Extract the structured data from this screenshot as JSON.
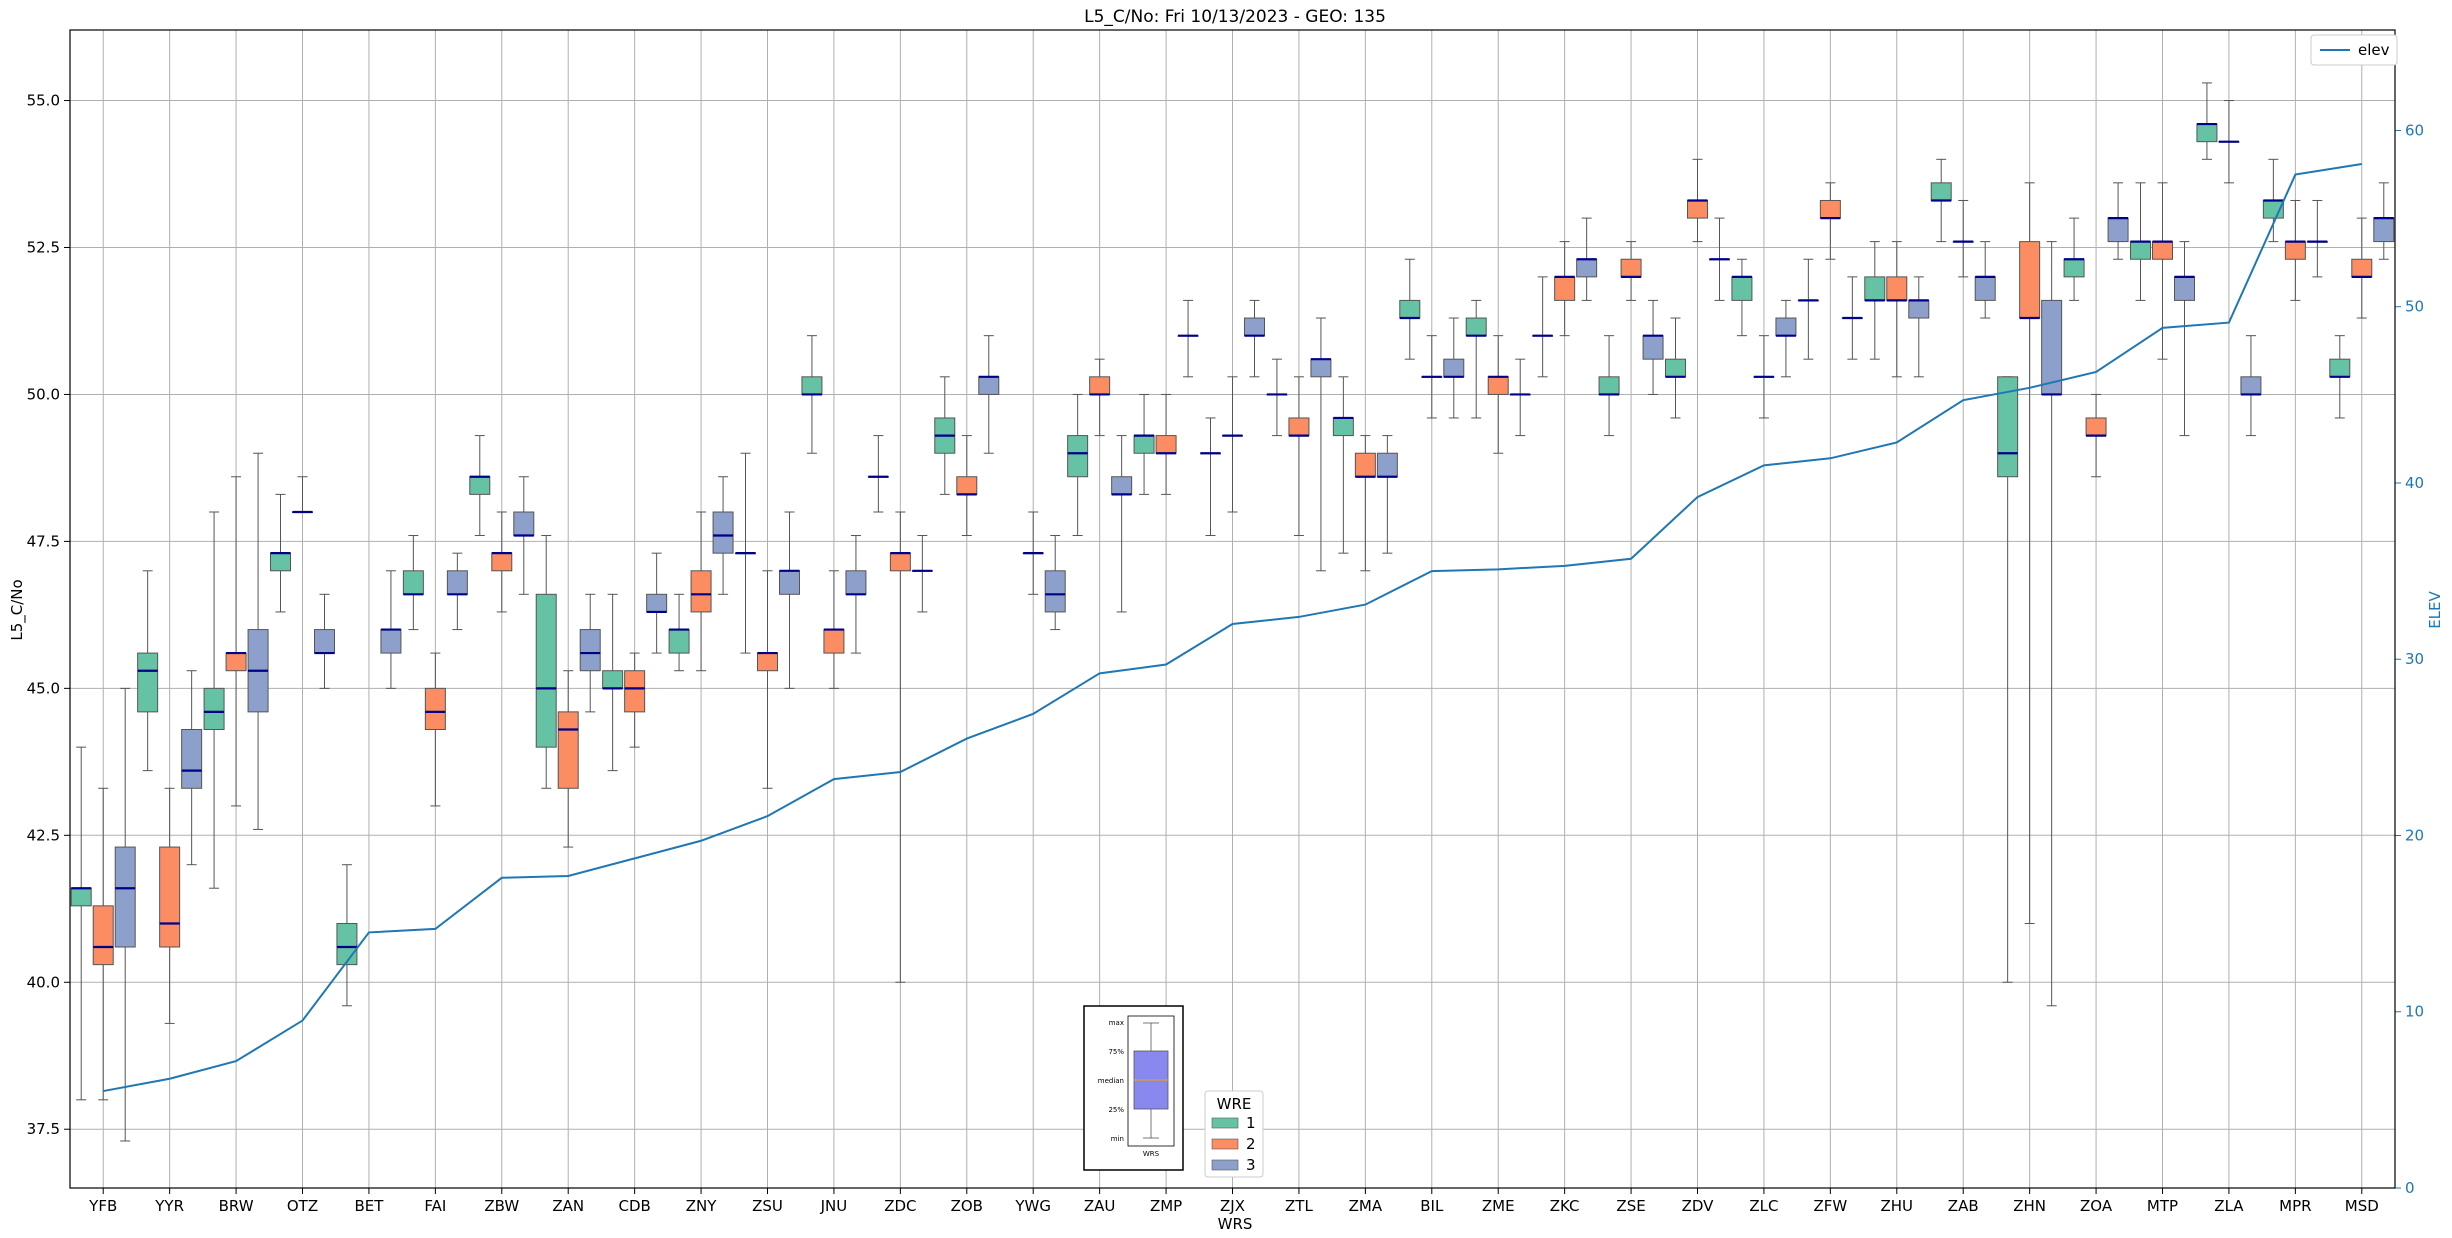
{
  "chart_data": {
    "type": "box",
    "title": "L5_C/No: Fri 10/13/2023 - GEO: 135",
    "xlabel": "WRS",
    "ylabel": "L5_C/No",
    "y2label": "ELEV",
    "ylim": [
      36.5,
      56.2
    ],
    "y2lim": [
      0,
      65.7
    ],
    "yticks": [
      "37.5",
      "40.0",
      "42.5",
      "45.0",
      "47.5",
      "50.0",
      "52.5",
      "55.0"
    ],
    "y2ticks": [
      "0",
      "10",
      "20",
      "30",
      "40",
      "50",
      "60"
    ],
    "grid": true,
    "colors": {
      "1": "#66c2a5",
      "2": "#fc8d62",
      "3": "#8da0cb",
      "median": "#00008b",
      "elev": "#1f77b4"
    },
    "categories": [
      "YFB",
      "YYR",
      "BRW",
      "OTZ",
      "BET",
      "FAI",
      "ZBW",
      "ZAN",
      "CDB",
      "ZNY",
      "ZSU",
      "JNU",
      "ZDC",
      "ZOB",
      "YWG",
      "ZAU",
      "ZMP",
      "ZJX",
      "ZTL",
      "ZMA",
      "BIL",
      "ZME",
      "ZKC",
      "ZSE",
      "ZDV",
      "ZLC",
      "ZFW",
      "ZHU",
      "ZAB",
      "ZHN",
      "ZOA",
      "MTP",
      "ZLA",
      "MPR",
      "MSD"
    ],
    "legend": {
      "title": "WRE",
      "entries": [
        "1",
        "2",
        "3"
      ]
    },
    "elev_legend": "elev",
    "elev": [
      5.5,
      6.2,
      7.2,
      9.5,
      14.5,
      14.7,
      17.6,
      17.7,
      18.7,
      19.7,
      21.1,
      23.2,
      23.6,
      25.5,
      26.9,
      29.2,
      29.7,
      32.0,
      32.4,
      33.1,
      35.0,
      35.1,
      35.3,
      35.7,
      39.2,
      41.0,
      41.4,
      42.3,
      44.7,
      45.4,
      46.3,
      48.8,
      49.1,
      57.5,
      58.1
    ],
    "boxes": [
      {
        "station": "YFB",
        "wre": "1",
        "min": 38.0,
        "q1": 41.3,
        "median": 41.6,
        "q3": 41.6,
        "max": 44.0
      },
      {
        "station": "YFB",
        "wre": "2",
        "min": 38.0,
        "q1": 40.3,
        "median": 40.6,
        "q3": 41.3,
        "max": 43.3
      },
      {
        "station": "YFB",
        "wre": "3",
        "min": 37.3,
        "q1": 40.6,
        "median": 41.6,
        "q3": 42.3,
        "max": 45.0
      },
      {
        "station": "YYR",
        "wre": "1",
        "min": 43.6,
        "q1": 44.6,
        "median": 45.3,
        "q3": 45.6,
        "max": 47.0
      },
      {
        "station": "YYR",
        "wre": "2",
        "min": 39.3,
        "q1": 40.6,
        "median": 41.0,
        "q3": 42.3,
        "max": 43.3
      },
      {
        "station": "YYR",
        "wre": "3",
        "min": 42.0,
        "q1": 43.3,
        "median": 43.6,
        "q3": 44.3,
        "max": 45.3
      },
      {
        "station": "BRW",
        "wre": "1",
        "min": 41.6,
        "q1": 44.3,
        "median": 44.6,
        "q3": 45.0,
        "max": 48.0
      },
      {
        "station": "BRW",
        "wre": "2",
        "min": 43.0,
        "q1": 45.3,
        "median": 45.6,
        "q3": 45.6,
        "max": 48.6
      },
      {
        "station": "BRW",
        "wre": "3",
        "min": 42.6,
        "q1": 44.6,
        "median": 45.3,
        "q3": 46.0,
        "max": 49.0
      },
      {
        "station": "OTZ",
        "wre": "1",
        "min": 46.3,
        "q1": 47.0,
        "median": 47.3,
        "q3": 47.3,
        "max": 48.3
      },
      {
        "station": "OTZ",
        "wre": "2",
        "min": 48.0,
        "q1": 48.0,
        "median": 48.0,
        "q3": 48.0,
        "max": 48.6
      },
      {
        "station": "OTZ",
        "wre": "3",
        "min": 45.0,
        "q1": 45.6,
        "median": 45.6,
        "q3": 46.0,
        "max": 46.6
      },
      {
        "station": "BET",
        "wre": "1",
        "min": 39.6,
        "q1": 40.3,
        "median": 40.6,
        "q3": 41.0,
        "max": 42.0
      },
      {
        "station": "BET",
        "wre": "3",
        "min": 45.0,
        "q1": 45.6,
        "median": 46.0,
        "q3": 46.0,
        "max": 47.0
      },
      {
        "station": "FAI",
        "wre": "1",
        "min": 46.0,
        "q1": 46.6,
        "median": 46.6,
        "q3": 47.0,
        "max": 47.6
      },
      {
        "station": "FAI",
        "wre": "2",
        "min": 43.0,
        "q1": 44.3,
        "median": 44.6,
        "q3": 45.0,
        "max": 45.6
      },
      {
        "station": "FAI",
        "wre": "3",
        "min": 46.0,
        "q1": 46.6,
        "median": 46.6,
        "q3": 47.0,
        "max": 47.3
      },
      {
        "station": "ZBW",
        "wre": "1",
        "min": 47.6,
        "q1": 48.3,
        "median": 48.6,
        "q3": 48.6,
        "max": 49.3
      },
      {
        "station": "ZBW",
        "wre": "2",
        "min": 46.3,
        "q1": 47.0,
        "median": 47.3,
        "q3": 47.3,
        "max": 48.0
      },
      {
        "station": "ZBW",
        "wre": "3",
        "min": 46.6,
        "q1": 47.6,
        "median": 47.6,
        "q3": 48.0,
        "max": 48.6
      },
      {
        "station": "ZAN",
        "wre": "1",
        "min": 43.3,
        "q1": 44.0,
        "median": 45.0,
        "q3": 46.6,
        "max": 47.6
      },
      {
        "station": "ZAN",
        "wre": "2",
        "min": 42.3,
        "q1": 43.3,
        "median": 44.3,
        "q3": 44.6,
        "max": 45.3
      },
      {
        "station": "ZAN",
        "wre": "3",
        "min": 44.6,
        "q1": 45.3,
        "median": 45.6,
        "q3": 46.0,
        "max": 46.6
      },
      {
        "station": "CDB",
        "wre": "1",
        "min": 43.6,
        "q1": 45.0,
        "median": 45.0,
        "q3": 45.3,
        "max": 46.6
      },
      {
        "station": "CDB",
        "wre": "2",
        "min": 44.0,
        "q1": 44.6,
        "median": 45.0,
        "q3": 45.3,
        "max": 45.6
      },
      {
        "station": "CDB",
        "wre": "3",
        "min": 45.6,
        "q1": 46.3,
        "median": 46.3,
        "q3": 46.6,
        "max": 47.3
      },
      {
        "station": "ZNY",
        "wre": "1",
        "min": 45.3,
        "q1": 45.6,
        "median": 46.0,
        "q3": 46.0,
        "max": 46.6
      },
      {
        "station": "ZNY",
        "wre": "2",
        "min": 45.3,
        "q1": 46.3,
        "median": 46.6,
        "q3": 47.0,
        "max": 48.0
      },
      {
        "station": "ZNY",
        "wre": "3",
        "min": 46.6,
        "q1": 47.3,
        "median": 47.6,
        "q3": 48.0,
        "max": 48.6
      },
      {
        "station": "ZSU",
        "wre": "1",
        "min": 45.6,
        "q1": 47.3,
        "median": 47.3,
        "q3": 47.3,
        "max": 49.0
      },
      {
        "station": "ZSU",
        "wre": "2",
        "min": 43.3,
        "q1": 45.3,
        "median": 45.6,
        "q3": 45.6,
        "max": 47.0
      },
      {
        "station": "ZSU",
        "wre": "3",
        "min": 45.0,
        "q1": 46.6,
        "median": 47.0,
        "q3": 47.0,
        "max": 48.0
      },
      {
        "station": "JNU",
        "wre": "1",
        "min": 49.0,
        "q1": 50.0,
        "median": 50.0,
        "q3": 50.3,
        "max": 51.0
      },
      {
        "station": "JNU",
        "wre": "2",
        "min": 45.0,
        "q1": 45.6,
        "median": 46.0,
        "q3": 46.0,
        "max": 47.0
      },
      {
        "station": "JNU",
        "wre": "3",
        "min": 45.6,
        "q1": 46.6,
        "median": 46.6,
        "q3": 47.0,
        "max": 47.6
      },
      {
        "station": "ZDC",
        "wre": "1",
        "min": 48.0,
        "q1": 48.6,
        "median": 48.6,
        "q3": 48.6,
        "max": 49.3
      },
      {
        "station": "ZDC",
        "wre": "2",
        "min": 40.0,
        "q1": 47.0,
        "median": 47.3,
        "q3": 47.3,
        "max": 48.0
      },
      {
        "station": "ZDC",
        "wre": "3",
        "min": 46.3,
        "q1": 47.0,
        "median": 47.0,
        "q3": 47.0,
        "max": 47.6
      },
      {
        "station": "ZOB",
        "wre": "1",
        "min": 48.3,
        "q1": 49.0,
        "median": 49.3,
        "q3": 49.6,
        "max": 50.3
      },
      {
        "station": "ZOB",
        "wre": "2",
        "min": 47.6,
        "q1": 48.3,
        "median": 48.3,
        "q3": 48.6,
        "max": 49.3
      },
      {
        "station": "ZOB",
        "wre": "3",
        "min": 49.0,
        "q1": 50.0,
        "median": 50.3,
        "q3": 50.3,
        "max": 51.0
      },
      {
        "station": "YWG",
        "wre": "2",
        "min": 46.6,
        "q1": 47.3,
        "median": 47.3,
        "q3": 47.3,
        "max": 48.0
      },
      {
        "station": "YWG",
        "wre": "3",
        "min": 46.0,
        "q1": 46.3,
        "median": 46.6,
        "q3": 47.0,
        "max": 47.6
      },
      {
        "station": "ZAU",
        "wre": "1",
        "min": 47.6,
        "q1": 48.6,
        "median": 49.0,
        "q3": 49.3,
        "max": 50.0
      },
      {
        "station": "ZAU",
        "wre": "2",
        "min": 49.3,
        "q1": 50.0,
        "median": 50.0,
        "q3": 50.3,
        "max": 50.6
      },
      {
        "station": "ZAU",
        "wre": "3",
        "min": 46.3,
        "q1": 48.3,
        "median": 48.3,
        "q3": 48.6,
        "max": 49.3
      },
      {
        "station": "ZMP",
        "wre": "1",
        "min": 48.3,
        "q1": 49.0,
        "median": 49.3,
        "q3": 49.3,
        "max": 50.0
      },
      {
        "station": "ZMP",
        "wre": "2",
        "min": 48.3,
        "q1": 49.0,
        "median": 49.0,
        "q3": 49.3,
        "max": 50.0
      },
      {
        "station": "ZMP",
        "wre": "3",
        "min": 50.3,
        "q1": 51.0,
        "median": 51.0,
        "q3": 51.0,
        "max": 51.6
      },
      {
        "station": "ZJX",
        "wre": "1",
        "min": 47.6,
        "q1": 49.0,
        "median": 49.0,
        "q3": 49.0,
        "max": 49.6
      },
      {
        "station": "ZJX",
        "wre": "2",
        "min": 48.0,
        "q1": 49.3,
        "median": 49.3,
        "q3": 49.3,
        "max": 50.3
      },
      {
        "station": "ZJX",
        "wre": "3",
        "min": 50.3,
        "q1": 51.0,
        "median": 51.0,
        "q3": 51.3,
        "max": 51.6
      },
      {
        "station": "ZTL",
        "wre": "1",
        "min": 49.3,
        "q1": 50.0,
        "median": 50.0,
        "q3": 50.0,
        "max": 50.6
      },
      {
        "station": "ZTL",
        "wre": "2",
        "min": 47.6,
        "q1": 49.3,
        "median": 49.3,
        "q3": 49.6,
        "max": 50.3
      },
      {
        "station": "ZTL",
        "wre": "3",
        "min": 47.0,
        "q1": 50.3,
        "median": 50.6,
        "q3": 50.6,
        "max": 51.3
      },
      {
        "station": "ZMA",
        "wre": "1",
        "min": 47.3,
        "q1": 49.3,
        "median": 49.6,
        "q3": 49.6,
        "max": 50.3
      },
      {
        "station": "ZMA",
        "wre": "2",
        "min": 47.0,
        "q1": 48.6,
        "median": 48.6,
        "q3": 49.0,
        "max": 49.3
      },
      {
        "station": "ZMA",
        "wre": "3",
        "min": 47.3,
        "q1": 48.6,
        "median": 48.6,
        "q3": 49.0,
        "max": 49.3
      },
      {
        "station": "BIL",
        "wre": "1",
        "min": 50.6,
        "q1": 51.3,
        "median": 51.3,
        "q3": 51.6,
        "max": 52.3
      },
      {
        "station": "BIL",
        "wre": "2",
        "min": 49.6,
        "q1": 50.3,
        "median": 50.3,
        "q3": 50.3,
        "max": 51.0
      },
      {
        "station": "BIL",
        "wre": "3",
        "min": 49.6,
        "q1": 50.3,
        "median": 50.3,
        "q3": 50.6,
        "max": 51.3
      },
      {
        "station": "ZME",
        "wre": "1",
        "min": 49.6,
        "q1": 51.0,
        "median": 51.0,
        "q3": 51.3,
        "max": 51.6
      },
      {
        "station": "ZME",
        "wre": "2",
        "min": 49.0,
        "q1": 50.0,
        "median": 50.3,
        "q3": 50.3,
        "max": 51.0
      },
      {
        "station": "ZME",
        "wre": "3",
        "min": 49.3,
        "q1": 50.0,
        "median": 50.0,
        "q3": 50.0,
        "max": 50.6
      },
      {
        "station": "ZKC",
        "wre": "1",
        "min": 50.3,
        "q1": 51.0,
        "median": 51.0,
        "q3": 51.0,
        "max": 52.0
      },
      {
        "station": "ZKC",
        "wre": "2",
        "min": 51.0,
        "q1": 51.6,
        "median": 52.0,
        "q3": 52.0,
        "max": 52.6
      },
      {
        "station": "ZKC",
        "wre": "3",
        "min": 51.6,
        "q1": 52.0,
        "median": 52.3,
        "q3": 52.3,
        "max": 53.0
      },
      {
        "station": "ZSE",
        "wre": "1",
        "min": 49.3,
        "q1": 50.0,
        "median": 50.0,
        "q3": 50.3,
        "max": 51.0
      },
      {
        "station": "ZSE",
        "wre": "2",
        "min": 51.6,
        "q1": 52.0,
        "median": 52.0,
        "q3": 52.3,
        "max": 52.6
      },
      {
        "station": "ZSE",
        "wre": "3",
        "min": 50.0,
        "q1": 50.6,
        "median": 51.0,
        "q3": 51.0,
        "max": 51.6
      },
      {
        "station": "ZDV",
        "wre": "1",
        "min": 49.6,
        "q1": 50.3,
        "median": 50.3,
        "q3": 50.6,
        "max": 51.3
      },
      {
        "station": "ZDV",
        "wre": "2",
        "min": 52.6,
        "q1": 53.0,
        "median": 53.3,
        "q3": 53.3,
        "max": 54.0
      },
      {
        "station": "ZDV",
        "wre": "3",
        "min": 51.6,
        "q1": 52.3,
        "median": 52.3,
        "q3": 52.3,
        "max": 53.0
      },
      {
        "station": "ZLC",
        "wre": "1",
        "min": 51.0,
        "q1": 51.6,
        "median": 52.0,
        "q3": 52.0,
        "max": 52.3
      },
      {
        "station": "ZLC",
        "wre": "2",
        "min": 49.6,
        "q1": 50.3,
        "median": 50.3,
        "q3": 50.3,
        "max": 51.0
      },
      {
        "station": "ZLC",
        "wre": "3",
        "min": 50.3,
        "q1": 51.0,
        "median": 51.0,
        "q3": 51.3,
        "max": 51.6
      },
      {
        "station": "ZFW",
        "wre": "1",
        "min": 50.6,
        "q1": 51.6,
        "median": 51.6,
        "q3": 51.6,
        "max": 52.3
      },
      {
        "station": "ZFW",
        "wre": "2",
        "min": 52.3,
        "q1": 53.0,
        "median": 53.0,
        "q3": 53.3,
        "max": 53.6
      },
      {
        "station": "ZFW",
        "wre": "3",
        "min": 50.6,
        "q1": 51.3,
        "median": 51.3,
        "q3": 51.3,
        "max": 52.0
      },
      {
        "station": "ZHU",
        "wre": "1",
        "min": 50.6,
        "q1": 51.6,
        "median": 51.6,
        "q3": 52.0,
        "max": 52.6
      },
      {
        "station": "ZHU",
        "wre": "2",
        "min": 50.3,
        "q1": 51.6,
        "median": 51.6,
        "q3": 52.0,
        "max": 52.6
      },
      {
        "station": "ZHU",
        "wre": "3",
        "min": 50.3,
        "q1": 51.3,
        "median": 51.6,
        "q3": 51.6,
        "max": 52.0
      },
      {
        "station": "ZAB",
        "wre": "1",
        "min": 52.6,
        "q1": 53.3,
        "median": 53.3,
        "q3": 53.6,
        "max": 54.0
      },
      {
        "station": "ZAB",
        "wre": "2",
        "min": 52.0,
        "q1": 52.6,
        "median": 52.6,
        "q3": 52.6,
        "max": 53.3
      },
      {
        "station": "ZAB",
        "wre": "3",
        "min": 51.3,
        "q1": 51.6,
        "median": 52.0,
        "q3": 52.0,
        "max": 52.6
      },
      {
        "station": "ZHN",
        "wre": "1",
        "min": 40.0,
        "q1": 48.6,
        "median": 49.0,
        "q3": 50.3,
        "max": 50.3
      },
      {
        "station": "ZHN",
        "wre": "2",
        "min": 41.0,
        "q1": 51.3,
        "median": 51.3,
        "q3": 52.6,
        "max": 53.6
      },
      {
        "station": "ZHN",
        "wre": "3",
        "min": 39.6,
        "q1": 50.0,
        "median": 50.0,
        "q3": 51.6,
        "max": 52.6
      },
      {
        "station": "ZOA",
        "wre": "1",
        "min": 51.6,
        "q1": 52.0,
        "median": 52.3,
        "q3": 52.3,
        "max": 53.0
      },
      {
        "station": "ZOA",
        "wre": "2",
        "min": 48.6,
        "q1": 49.3,
        "median": 49.3,
        "q3": 49.6,
        "max": 50.0
      },
      {
        "station": "ZOA",
        "wre": "3",
        "min": 52.3,
        "q1": 52.6,
        "median": 53.0,
        "q3": 53.0,
        "max": 53.6
      },
      {
        "station": "MTP",
        "wre": "1",
        "min": 51.6,
        "q1": 52.3,
        "median": 52.6,
        "q3": 52.6,
        "max": 53.6
      },
      {
        "station": "MTP",
        "wre": "2",
        "min": 50.6,
        "q1": 52.3,
        "median": 52.6,
        "q3": 52.6,
        "max": 53.6
      },
      {
        "station": "MTP",
        "wre": "3",
        "min": 49.3,
        "q1": 51.6,
        "median": 52.0,
        "q3": 52.0,
        "max": 52.6
      },
      {
        "station": "ZLA",
        "wre": "1",
        "min": 54.0,
        "q1": 54.3,
        "median": 54.6,
        "q3": 54.6,
        "max": 55.3
      },
      {
        "station": "ZLA",
        "wre": "2",
        "min": 53.6,
        "q1": 54.3,
        "median": 54.3,
        "q3": 54.3,
        "max": 55.0
      },
      {
        "station": "ZLA",
        "wre": "3",
        "min": 49.3,
        "q1": 50.0,
        "median": 50.0,
        "q3": 50.3,
        "max": 51.0
      },
      {
        "station": "MPR",
        "wre": "1",
        "min": 52.6,
        "q1": 53.0,
        "median": 53.3,
        "q3": 53.3,
        "max": 54.0
      },
      {
        "station": "MPR",
        "wre": "2",
        "min": 51.6,
        "q1": 52.3,
        "median": 52.6,
        "q3": 52.6,
        "max": 53.3
      },
      {
        "station": "MPR",
        "wre": "3",
        "min": 52.0,
        "q1": 52.6,
        "median": 52.6,
        "q3": 52.6,
        "max": 53.3
      },
      {
        "station": "MSD",
        "wre": "1",
        "min": 49.6,
        "q1": 50.3,
        "median": 50.3,
        "q3": 50.6,
        "max": 51.0
      },
      {
        "station": "MSD",
        "wre": "2",
        "min": 51.3,
        "q1": 52.0,
        "median": 52.0,
        "q3": 52.3,
        "max": 53.0
      },
      {
        "station": "MSD",
        "wre": "3",
        "min": 52.3,
        "q1": 52.6,
        "median": 53.0,
        "q3": 53.0,
        "max": 53.6
      }
    ],
    "key": {
      "labels": [
        "max",
        "75%",
        "median",
        "25%",
        "min"
      ],
      "xlabel": "WRS"
    }
  }
}
